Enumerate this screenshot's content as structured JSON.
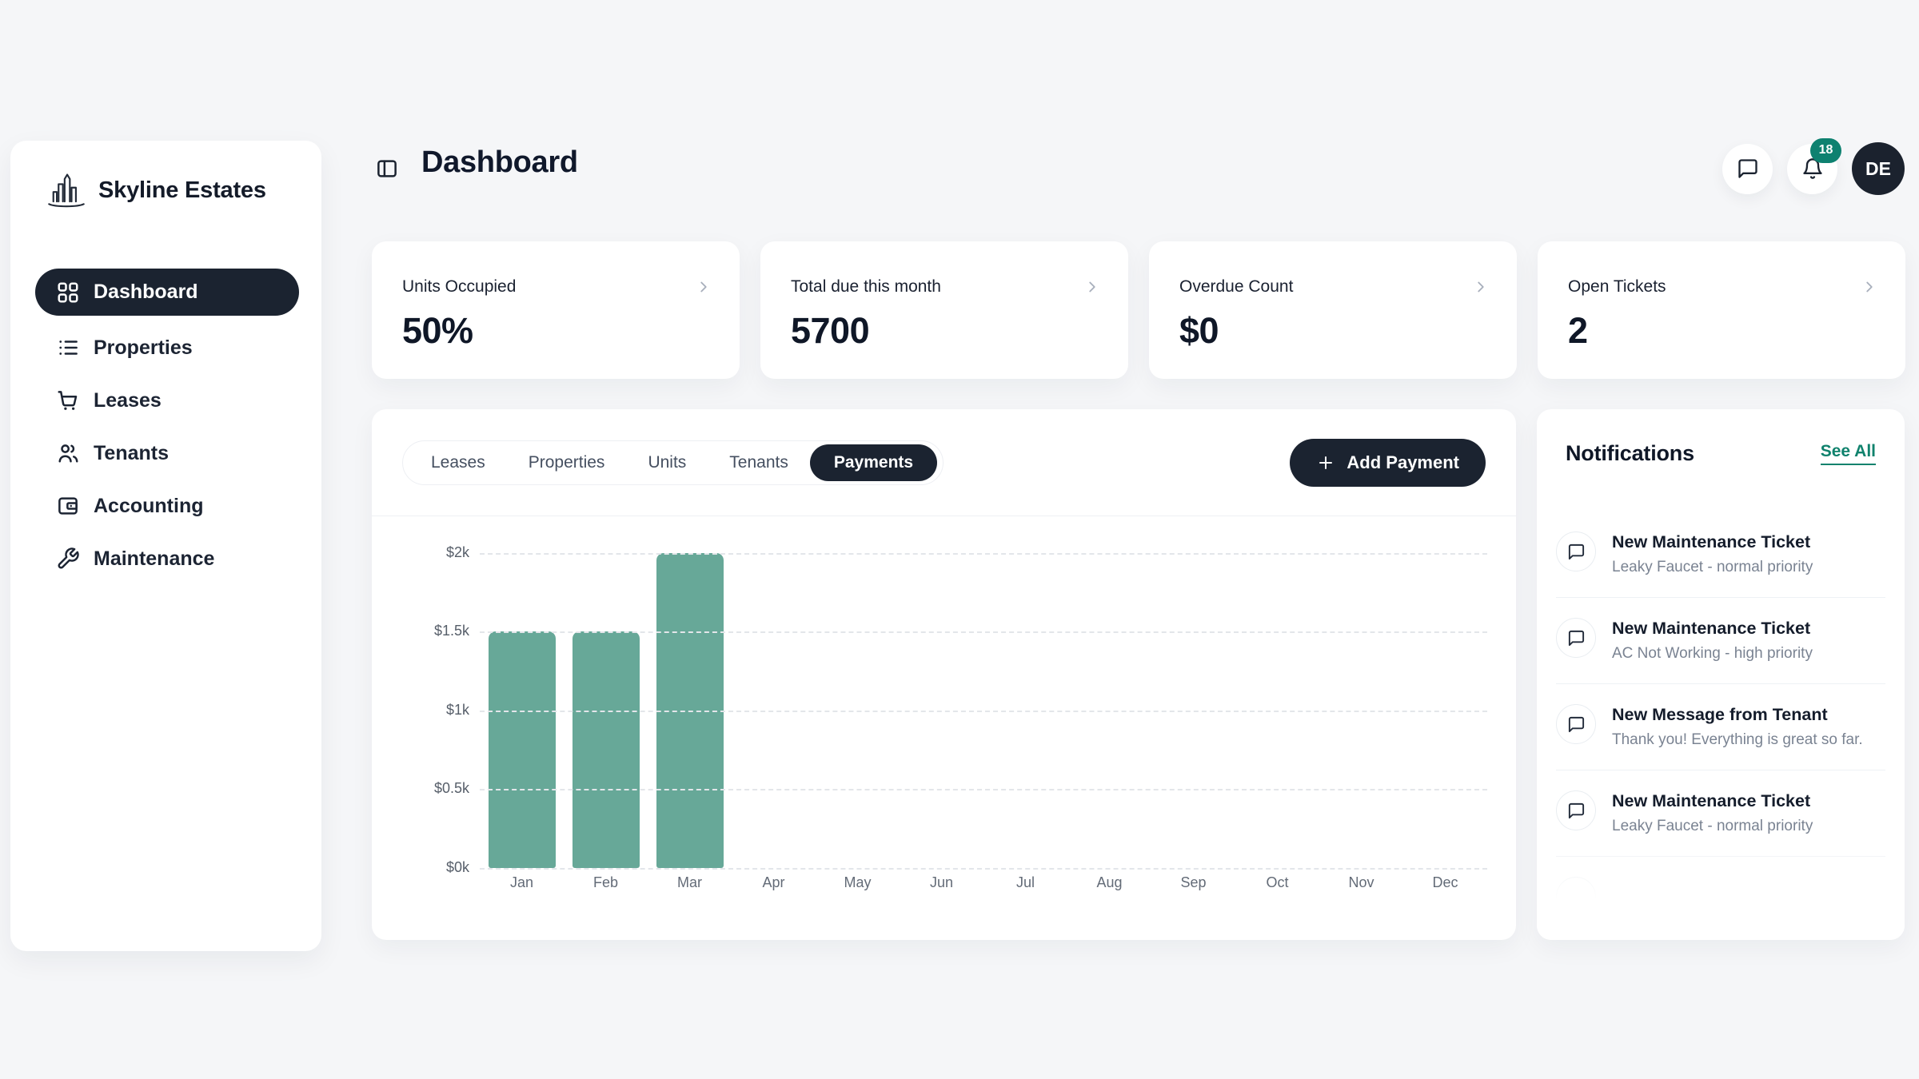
{
  "app": {
    "name": "Skyline Estates"
  },
  "sidebar": {
    "items": [
      {
        "label": "Dashboard",
        "icon": "grid-icon",
        "active": true
      },
      {
        "label": "Properties",
        "icon": "list-icon",
        "active": false
      },
      {
        "label": "Leases",
        "icon": "cart-icon",
        "active": false
      },
      {
        "label": "Tenants",
        "icon": "users-icon",
        "active": false
      },
      {
        "label": "Accounting",
        "icon": "wallet-icon",
        "active": false
      },
      {
        "label": "Maintenance",
        "icon": "wrench-icon",
        "active": false
      }
    ]
  },
  "header": {
    "title": "Dashboard",
    "notification_badge": "18",
    "avatar_initials": "DE"
  },
  "stat_cards": [
    {
      "label": "Units Occupied",
      "value": "50%"
    },
    {
      "label": "Total due this month",
      "value": "5700"
    },
    {
      "label": "Overdue Count",
      "value": "$0"
    },
    {
      "label": "Open Tickets",
      "value": "2"
    }
  ],
  "tabs": {
    "items": [
      "Leases",
      "Properties",
      "Units",
      "Tenants",
      "Payments"
    ],
    "active": "Payments"
  },
  "actions": {
    "add_payment_label": "Add Payment"
  },
  "notifications": {
    "title": "Notifications",
    "see_all_label": "See All",
    "items": [
      {
        "title": "New Maintenance Ticket",
        "subtitle": "Leaky Faucet - normal priority"
      },
      {
        "title": "New Maintenance Ticket",
        "subtitle": "AC Not Working - high priority"
      },
      {
        "title": "New Message from Tenant",
        "subtitle": "Thank you! Everything is great so far."
      },
      {
        "title": "New Maintenance Ticket",
        "subtitle": "Leaky Faucet - normal priority"
      }
    ],
    "has_partial_fifth_item": true
  },
  "chart_data": {
    "type": "bar",
    "title": "",
    "categories": [
      "Jan",
      "Feb",
      "Mar",
      "Apr",
      "May",
      "Jun",
      "Jul",
      "Aug",
      "Sep",
      "Oct",
      "Nov",
      "Dec"
    ],
    "values": [
      1500,
      1500,
      2000,
      0,
      0,
      0,
      0,
      0,
      0,
      0,
      0,
      0
    ],
    "xlabel": "",
    "ylabel": "",
    "ylim": [
      0,
      2100
    ],
    "yticks": [
      {
        "label": "$0k",
        "value": 0
      },
      {
        "label": "$0.5k",
        "value": 500
      },
      {
        "label": "$1k",
        "value": 1000
      },
      {
        "label": "$1.5k",
        "value": 1500
      },
      {
        "label": "$2k",
        "value": 2000
      }
    ],
    "grid": "dashed-horizontal",
    "legend": "none",
    "bar_color": "#67a898"
  },
  "colors": {
    "accent_teal": "#10826d",
    "badge_teal": "#0e8170",
    "dark_navy": "#1b2330",
    "bar_teal": "#67a898"
  }
}
